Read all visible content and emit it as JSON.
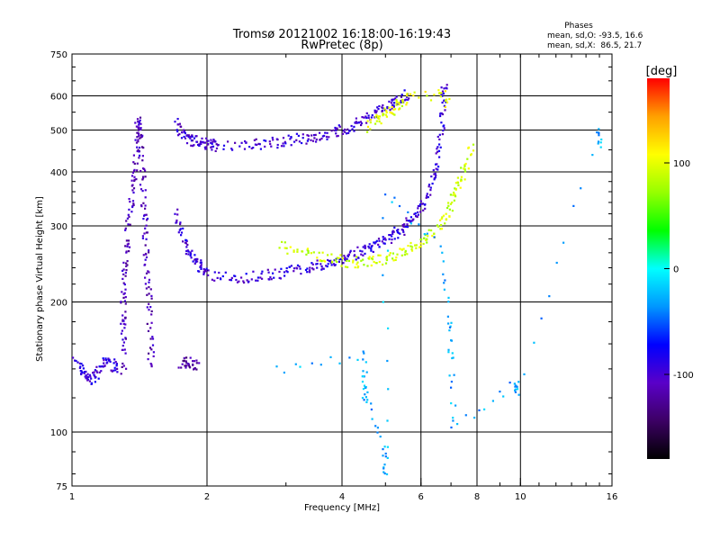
{
  "chart_data": {
    "type": "scatter",
    "title": "Tromsø 20121002 16:18:00-16:19:43",
    "subtitle": "RwPretec (8p)",
    "xlabel": "Frequency [MHz]",
    "ylabel": "Stationary phase Virtual Height [km]",
    "xscale": "log",
    "yscale": "log",
    "xlim": [
      1,
      16
    ],
    "ylim": [
      75,
      750
    ],
    "x_ticks": [
      1,
      2,
      4,
      6,
      8,
      10,
      16
    ],
    "x_gridlines": [
      2,
      4,
      6,
      8,
      10
    ],
    "y_ticks": [
      75,
      100,
      200,
      300,
      400,
      500,
      600,
      750
    ],
    "y_gridlines": [
      100,
      200,
      300,
      400,
      500,
      600
    ],
    "grid": true,
    "phase_info": {
      "title": "Phases",
      "line_o": "mean, sd,O: -93.5, 16.6",
      "line_x": "mean, sd,X:  86.5, 21.7"
    },
    "colorbar": {
      "label": "[deg]",
      "range": [
        -180,
        180
      ],
      "ticks": [
        100,
        0,
        -100
      ],
      "colors": [
        "#000000",
        "#3c0064",
        "#5a00c8",
        "#0000ff",
        "#0096ff",
        "#00ffff",
        "#00ff00",
        "#96ff00",
        "#ffff00",
        "#ffa000",
        "#ff0000"
      ]
    },
    "traces": [
      {
        "name": "",
        "phase": -95,
        "points": [
          [
            1.02,
            145
          ],
          [
            1.05,
            140
          ],
          [
            1.08,
            135
          ],
          [
            1.1,
            132
          ],
          [
            1.13,
            135
          ],
          [
            1.16,
            140
          ],
          [
            1.2,
            148
          ],
          [
            1.24,
            142
          ],
          [
            1.28,
            140
          ]
        ]
      },
      {
        "name": "",
        "phase": -110,
        "points": [
          [
            1.3,
            140
          ],
          [
            1.3,
            160
          ],
          [
            1.3,
            180
          ],
          [
            1.3,
            200
          ],
          [
            1.3,
            225
          ],
          [
            1.32,
            250
          ],
          [
            1.33,
            280
          ],
          [
            1.35,
            320
          ],
          [
            1.36,
            360
          ],
          [
            1.38,
            400
          ],
          [
            1.39,
            450
          ],
          [
            1.4,
            500
          ],
          [
            1.41,
            530
          ],
          [
            1.42,
            480
          ],
          [
            1.43,
            420
          ],
          [
            1.44,
            370
          ],
          [
            1.45,
            320
          ],
          [
            1.46,
            280
          ],
          [
            1.47,
            250
          ],
          [
            1.48,
            220
          ],
          [
            1.49,
            190
          ],
          [
            1.5,
            160
          ],
          [
            1.5,
            140
          ]
        ]
      },
      {
        "name": "",
        "phase": -120,
        "points": [
          [
            1.75,
            145
          ],
          [
            1.8,
            145
          ],
          [
            1.85,
            144
          ],
          [
            1.9,
            143
          ]
        ]
      },
      {
        "name": "",
        "phase": -100,
        "points": [
          [
            1.7,
            520
          ],
          [
            1.75,
            495
          ],
          [
            1.8,
            480
          ],
          [
            1.85,
            475
          ],
          [
            1.9,
            470
          ],
          [
            1.95,
            468
          ],
          [
            2.0,
            465
          ],
          [
            2.05,
            462
          ],
          [
            2.1,
            460
          ],
          [
            2.4,
            462
          ],
          [
            2.6,
            465
          ],
          [
            2.8,
            468
          ],
          [
            3.0,
            472
          ],
          [
            3.2,
            476
          ],
          [
            3.4,
            480
          ],
          [
            3.6,
            485
          ],
          [
            3.8,
            492
          ],
          [
            4.0,
            500
          ],
          [
            4.2,
            510
          ],
          [
            4.4,
            522
          ],
          [
            4.6,
            535
          ],
          [
            4.8,
            550
          ],
          [
            5.0,
            565
          ],
          [
            5.2,
            580
          ],
          [
            5.4,
            595
          ],
          [
            5.6,
            610
          ]
        ]
      },
      {
        "name": "",
        "phase": -95,
        "points": [
          [
            1.7,
            320
          ],
          [
            1.75,
            290
          ],
          [
            1.8,
            270
          ],
          [
            1.85,
            255
          ],
          [
            1.9,
            245
          ],
          [
            1.95,
            238
          ],
          [
            2.0,
            232
          ],
          [
            2.2,
            228
          ],
          [
            2.4,
            228
          ],
          [
            2.6,
            230
          ],
          [
            2.8,
            232
          ],
          [
            3.0,
            235
          ],
          [
            3.2,
            238
          ],
          [
            3.4,
            241
          ],
          [
            3.6,
            244
          ],
          [
            3.8,
            248
          ],
          [
            4.0,
            252
          ],
          [
            4.2,
            256
          ],
          [
            4.4,
            261
          ],
          [
            4.6,
            266
          ],
          [
            4.8,
            272
          ],
          [
            5.0,
            278
          ],
          [
            5.2,
            285
          ],
          [
            5.4,
            293
          ],
          [
            5.6,
            303
          ],
          [
            5.8,
            315
          ],
          [
            6.0,
            330
          ],
          [
            6.2,
            350
          ],
          [
            6.4,
            380
          ],
          [
            6.5,
            420
          ],
          [
            6.6,
            470
          ],
          [
            6.7,
            540
          ],
          [
            6.75,
            600
          ],
          [
            6.8,
            640
          ]
        ]
      },
      {
        "name": "",
        "phase": 90,
        "points": [
          [
            2.9,
            270
          ],
          [
            3.2,
            262
          ],
          [
            3.5,
            258
          ],
          [
            3.8,
            252
          ],
          [
            4.1,
            248
          ],
          [
            4.4,
            247
          ],
          [
            4.7,
            248
          ],
          [
            5.0,
            252
          ],
          [
            5.3,
            258
          ],
          [
            5.6,
            265
          ],
          [
            5.9,
            272
          ],
          [
            6.2,
            282
          ],
          [
            6.5,
            295
          ],
          [
            6.8,
            315
          ],
          [
            7.0,
            340
          ],
          [
            7.2,
            365
          ],
          [
            7.4,
            390
          ],
          [
            7.6,
            420
          ],
          [
            7.8,
            460
          ]
        ]
      },
      {
        "name": "",
        "phase": 100,
        "points": [
          [
            4.5,
            510
          ],
          [
            4.8,
            530
          ],
          [
            5.0,
            545
          ],
          [
            5.2,
            560
          ],
          [
            5.4,
            575
          ],
          [
            5.6,
            590
          ],
          [
            6.6,
            610
          ],
          [
            6.9,
            580
          ]
        ]
      },
      {
        "name": "",
        "phase": -30,
        "points": [
          [
            2.85,
            140
          ],
          [
            4.5,
            150
          ],
          [
            4.5,
            130
          ],
          [
            4.5,
            120
          ],
          [
            5.0,
            90
          ],
          [
            5.0,
            80
          ],
          [
            5.0,
            360
          ],
          [
            6.6,
            270
          ],
          [
            7.0,
            180
          ],
          [
            7.0,
            150
          ],
          [
            7.1,
            102
          ],
          [
            9.8,
            130
          ],
          [
            9.8,
            120
          ],
          [
            15,
            500
          ],
          [
            15,
            460
          ]
        ]
      }
    ]
  }
}
